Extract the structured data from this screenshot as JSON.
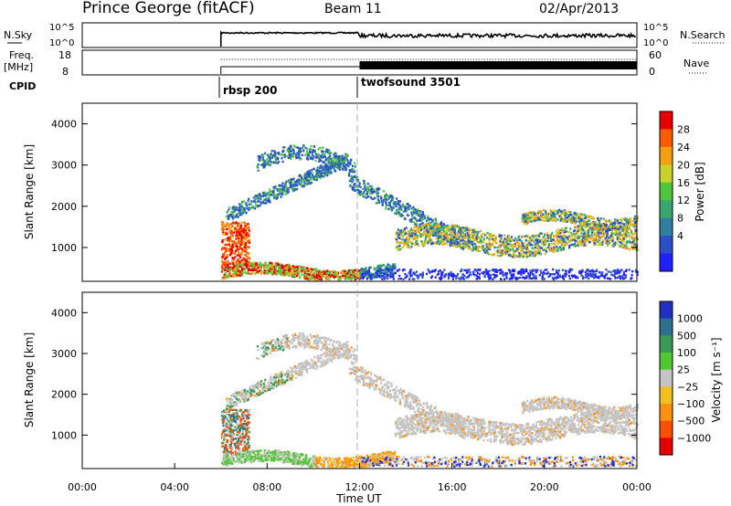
{
  "header": {
    "station": "Prince George (fitACF)",
    "beam": "Beam 11",
    "date": "02/Apr/2013"
  },
  "top_panels": {
    "noise": {
      "left_label": "N.Sky",
      "right_label": "N.Search",
      "left_ticks": [
        "10^5",
        "10^0"
      ],
      "right_ticks": [
        "10^5",
        "10^0"
      ]
    },
    "freq": {
      "left_label_1": "Freq.",
      "left_label_2": "[MHz]",
      "right_label": "Nave",
      "left_ticks": [
        "18",
        "8"
      ],
      "right_ticks": [
        "60",
        "0"
      ]
    },
    "cpid": {
      "label": "CPID",
      "programs": [
        {
          "name": "rbsp 200",
          "start_hour": 6
        },
        {
          "name": "twofsound 3501",
          "start_hour": 12
        }
      ]
    }
  },
  "chart_data": [
    {
      "type": "heatmap",
      "name": "power-panel",
      "ylabel": "Slant Range [km]",
      "ylim": [
        180,
        4500
      ],
      "yticks": [
        "1000",
        "2000",
        "3000",
        "4000"
      ],
      "xlim": [
        0,
        24
      ],
      "colorbar": {
        "label": "Power [dB]",
        "ticks": [
          "4",
          "8",
          "12",
          "16",
          "20",
          "24",
          "28"
        ],
        "colors": [
          "#2020ff",
          "#2c50c8",
          "#2f7f9e",
          "#3aa66b",
          "#50c63c",
          "#c8d22a",
          "#f4a010",
          "#ff5a00",
          "#e80000"
        ]
      }
    },
    {
      "type": "heatmap",
      "name": "velocity-panel",
      "ylabel": "Slant Range [km]",
      "ylim": [
        180,
        4500
      ],
      "yticks": [
        "1000",
        "2000",
        "3000",
        "4000"
      ],
      "xlim": [
        0,
        24
      ],
      "xticks": [
        "00:00",
        "04:00",
        "08:00",
        "12:00",
        "16:00",
        "20:00",
        "00:00"
      ],
      "xlabel": "Time UT",
      "colorbar": {
        "label": "Velocity [m s⁻¹]",
        "ticks": [
          "1000",
          "500",
          "100",
          "25",
          "−25",
          "−100",
          "−500",
          "−1000"
        ],
        "colors": [
          "#2030c0",
          "#2f6f8f",
          "#3a9a5a",
          "#50c830",
          "#c4c4c4",
          "#f0c020",
          "#ff9010",
          "#ff5000",
          "#e80000"
        ]
      }
    }
  ]
}
